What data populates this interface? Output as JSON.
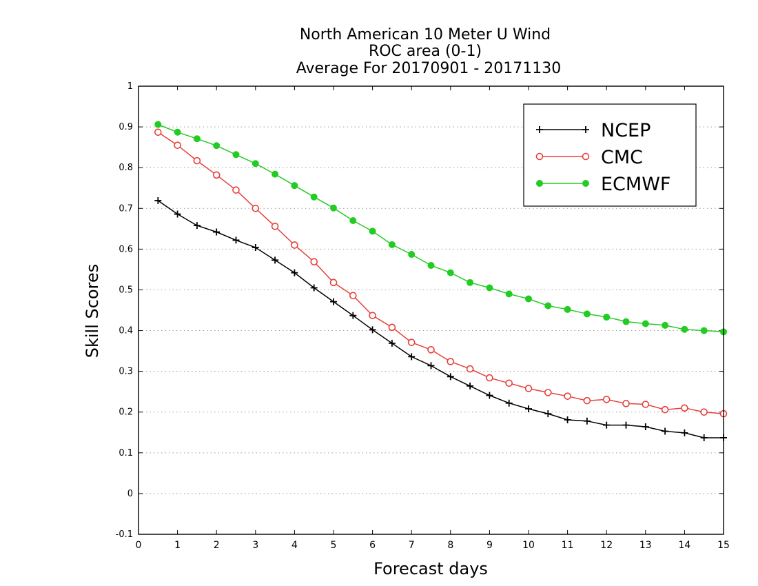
{
  "chart_data": {
    "type": "line",
    "title": [
      "North American 10 Meter U Wind",
      "ROC area (0-1)",
      "Average For 20170901 - 20171130"
    ],
    "xlabel": "Forecast days",
    "ylabel": "Skill Scores",
    "xlim": [
      0,
      15
    ],
    "ylim": [
      -0.1,
      1
    ],
    "xticks": [
      0,
      1,
      2,
      3,
      4,
      5,
      6,
      7,
      8,
      9,
      10,
      11,
      12,
      13,
      14,
      15
    ],
    "yticks": [
      -0.1,
      0,
      0.1,
      0.2,
      0.3,
      0.4,
      0.5,
      0.6,
      0.7,
      0.8,
      0.9,
      1
    ],
    "ytick_labels": [
      "-0.1",
      "0",
      "0.1",
      "0.2",
      "0.3",
      "0.4",
      "0.5",
      "0.6",
      "0.7",
      "0.8",
      "0.9",
      "1"
    ],
    "grid": "horizontal dotted",
    "legend_position": "top-right",
    "x": [
      0.5,
      1,
      1.5,
      2,
      2.5,
      3,
      3.5,
      4,
      4.5,
      5,
      5.5,
      6,
      6.5,
      7,
      7.5,
      8,
      8.5,
      9,
      9.5,
      10,
      10.5,
      11,
      11.5,
      12,
      12.5,
      13,
      13.5,
      14,
      14.5,
      15
    ],
    "series": [
      {
        "name": "NCEP",
        "color": "#000000",
        "marker": "plus",
        "values": [
          0.719,
          0.686,
          0.658,
          0.642,
          0.622,
          0.604,
          0.573,
          0.542,
          0.505,
          0.471,
          0.437,
          0.402,
          0.369,
          0.336,
          0.314,
          0.287,
          0.264,
          0.241,
          0.222,
          0.208,
          0.196,
          0.181,
          0.178,
          0.168,
          0.168,
          0.164,
          0.153,
          0.149,
          0.137,
          0.137
        ]
      },
      {
        "name": "CMC",
        "color": "#e8403a",
        "marker": "open-circle",
        "values": [
          0.887,
          0.855,
          0.817,
          0.782,
          0.745,
          0.7,
          0.656,
          0.61,
          0.569,
          0.518,
          0.486,
          0.437,
          0.408,
          0.371,
          0.353,
          0.324,
          0.306,
          0.284,
          0.271,
          0.258,
          0.248,
          0.239,
          0.228,
          0.231,
          0.221,
          0.219,
          0.206,
          0.21,
          0.2,
          0.196
        ]
      },
      {
        "name": "ECMWF",
        "color": "#22cc22",
        "marker": "filled-circle",
        "values": [
          0.906,
          0.887,
          0.871,
          0.854,
          0.832,
          0.81,
          0.784,
          0.756,
          0.728,
          0.701,
          0.67,
          0.644,
          0.611,
          0.587,
          0.56,
          0.542,
          0.518,
          0.505,
          0.49,
          0.478,
          0.461,
          0.452,
          0.441,
          0.433,
          0.422,
          0.417,
          0.413,
          0.403,
          0.4,
          0.397
        ]
      }
    ]
  }
}
